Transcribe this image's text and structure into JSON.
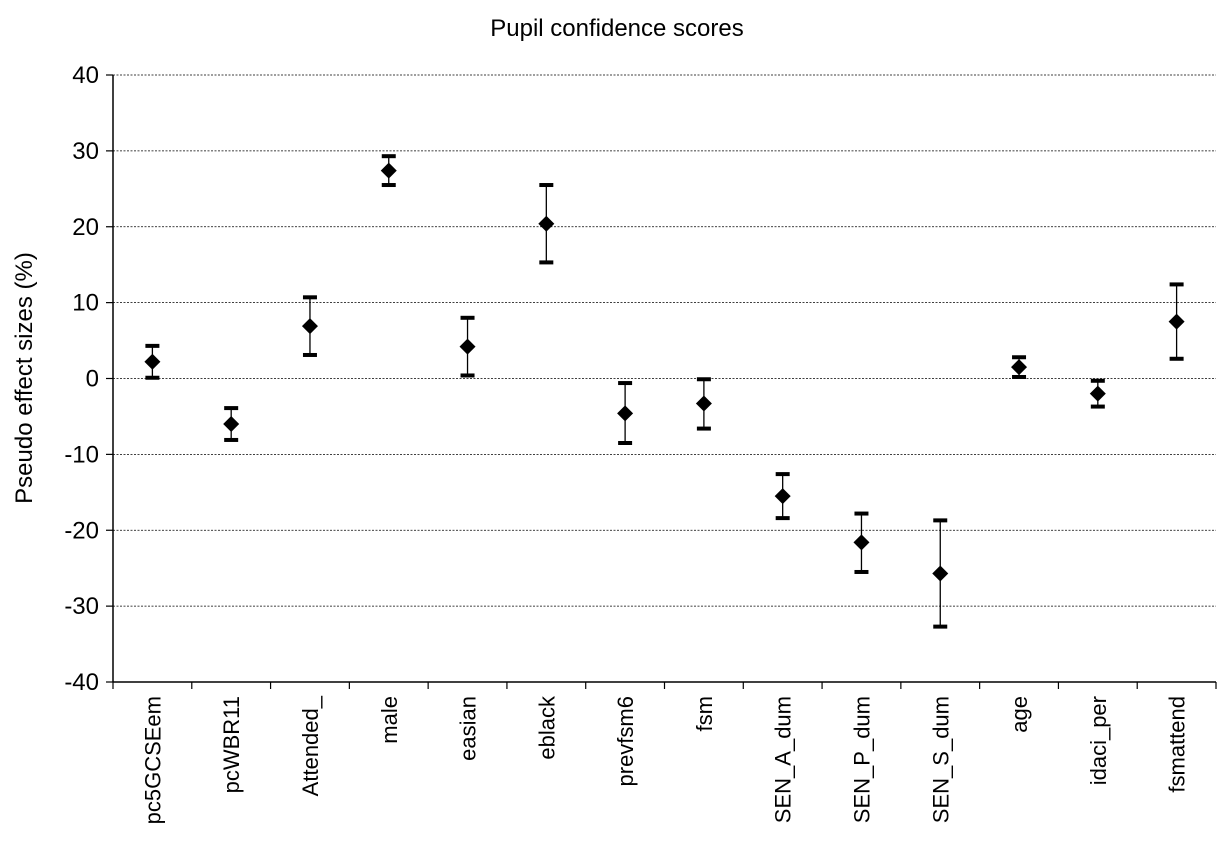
{
  "chart_data": {
    "type": "scatter",
    "title": "Pupil confidence scores",
    "xlabel": "",
    "ylabel": "Pseudo effect sizes  (%)",
    "ylim": [
      -40,
      40
    ],
    "yticks": [
      "40",
      "30",
      "20",
      "10",
      "0",
      "-10",
      "-20",
      "-30",
      "-40"
    ],
    "grid": true,
    "error_bars": true,
    "categories": [
      "pc5GCSEem",
      "pcWBR11",
      "Attended_",
      "male",
      "easian",
      "eblack",
      "prevfsm6",
      "fsm",
      "SEN_A_dum",
      "SEN_P_dum",
      "SEN_S_dum",
      "age",
      "idaci_per",
      "fsmattend"
    ],
    "values": [
      2.2,
      -6.0,
      6.9,
      27.4,
      4.2,
      20.4,
      -4.6,
      -3.3,
      -15.5,
      -21.6,
      -25.7,
      1.5,
      -2.0,
      7.5
    ],
    "lower": [
      0.1,
      -8.1,
      3.1,
      25.5,
      0.4,
      15.3,
      -8.5,
      -6.6,
      -18.4,
      -25.5,
      -32.7,
      0.2,
      -3.7,
      2.6
    ],
    "upper": [
      4.3,
      -3.9,
      10.7,
      29.3,
      8.0,
      25.5,
      -0.6,
      -0.1,
      -12.6,
      -17.8,
      -18.7,
      2.8,
      -0.3,
      12.4
    ]
  }
}
